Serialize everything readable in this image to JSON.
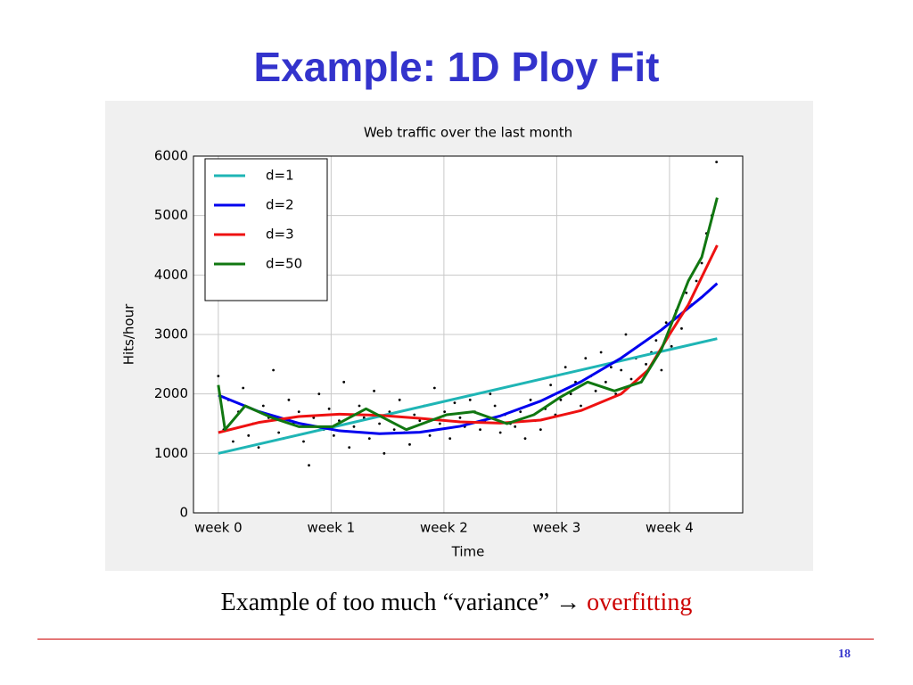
{
  "slide": {
    "title": "Example: 1D Ploy Fit",
    "caption": [
      "Example of too much “variance”",
      "→",
      "overfitting"
    ],
    "page_number": "18"
  },
  "chart_data": {
    "type": "line",
    "title": "Web traffic over the last month",
    "x_label": "Time",
    "y_label": "Hits/hour",
    "xlim": [
      -37,
      781
    ],
    "ylim": [
      0,
      6000
    ],
    "xticks": [
      {
        "value": 0,
        "label": "week 0"
      },
      {
        "value": 168,
        "label": "week 1"
      },
      {
        "value": 336,
        "label": "week 2"
      },
      {
        "value": 504,
        "label": "week 3"
      },
      {
        "value": 672,
        "label": "week 4"
      }
    ],
    "yticks": [
      0,
      1000,
      2000,
      3000,
      4000,
      5000,
      6000
    ],
    "grid": true,
    "legend": "upper left",
    "points": {
      "color": "#000000",
      "x": [
        0,
        8,
        15,
        22,
        30,
        37,
        45,
        52,
        60,
        67,
        75,
        82,
        90,
        97,
        105,
        112,
        120,
        127,
        135,
        142,
        150,
        157,
        165,
        172,
        180,
        187,
        195,
        202,
        210,
        217,
        225,
        232,
        240,
        247,
        255,
        262,
        270,
        277,
        285,
        292,
        300,
        307,
        315,
        322,
        330,
        337,
        345,
        352,
        360,
        367,
        375,
        382,
        390,
        397,
        405,
        412,
        420,
        427,
        435,
        442,
        450,
        457,
        465,
        472,
        480,
        487,
        495,
        502,
        510,
        517,
        525,
        532,
        540,
        547,
        555,
        562,
        570,
        577,
        585,
        592,
        600,
        607,
        615,
        622,
        630,
        637,
        645,
        652,
        660,
        667,
        675,
        682,
        690,
        697,
        705,
        712,
        720,
        727,
        735,
        742
      ],
      "values": [
        2300,
        1400,
        1900,
        1200,
        1700,
        2100,
        1300,
        1500,
        1100,
        1800,
        1600,
        2400,
        1350,
        1250,
        1900,
        1500,
        1700,
        1200,
        800,
        1600,
        2000,
        1400,
        1750,
        1300,
        1550,
        2200,
        1100,
        1450,
        1800,
        1600,
        1250,
        2050,
        1500,
        1000,
        1700,
        1400,
        1900,
        1350,
        1150,
        1650,
        1550,
        1800,
        1300,
        2100,
        1500,
        1700,
        1250,
        1850,
        1600,
        1450,
        1900,
        1700,
        1400,
        1550,
        2000,
        1800,
        1350,
        1650,
        1500,
        1450,
        1700,
        1250,
        1900,
        1550,
        1400,
        1750,
        2150,
        1650,
        1900,
        2450,
        2000,
        2200,
        1800,
        2600,
        2300,
        2050,
        2700,
        2200,
        2450,
        2000,
        2400,
        3000,
        2250,
        2600,
        2200,
        2500,
        2700,
        2900,
        2400,
        3200,
        2800,
        3400,
        3100,
        3700,
        3500,
        3900,
        4200,
        4700,
        5000,
        5900
      ]
    },
    "series": [
      {
        "name": "d=1",
        "color": "#1fb5b5",
        "x": [
          0,
          743
        ],
        "values": [
          1000,
          2930
        ]
      },
      {
        "name": "d=2",
        "color": "#0000ee",
        "x": [
          0,
          60,
          120,
          180,
          240,
          300,
          360,
          420,
          480,
          540,
          600,
          660,
          720,
          743
        ],
        "values": [
          1980,
          1705,
          1506,
          1381,
          1331,
          1356,
          1456,
          1631,
          1880,
          2205,
          2604,
          3078,
          3627,
          3858
        ]
      },
      {
        "name": "d=3",
        "color": "#ee1111",
        "x": [
          0,
          60,
          120,
          180,
          240,
          300,
          360,
          420,
          480,
          540,
          600,
          640,
          672,
          700,
          743
        ],
        "values": [
          1350,
          1520,
          1620,
          1660,
          1640,
          1590,
          1530,
          1510,
          1560,
          1720,
          2000,
          2400,
          3000,
          3500,
          4500
        ]
      },
      {
        "name": "d=50",
        "color": "#117711",
        "x": [
          0,
          10,
          40,
          80,
          120,
          170,
          220,
          280,
          340,
          380,
          430,
          470,
          510,
          550,
          590,
          630,
          660,
          700,
          720,
          743
        ],
        "values": [
          2150,
          1400,
          1800,
          1600,
          1450,
          1450,
          1750,
          1400,
          1650,
          1700,
          1500,
          1650,
          1950,
          2200,
          2050,
          2200,
          2750,
          3900,
          4300,
          5300
        ]
      }
    ]
  }
}
